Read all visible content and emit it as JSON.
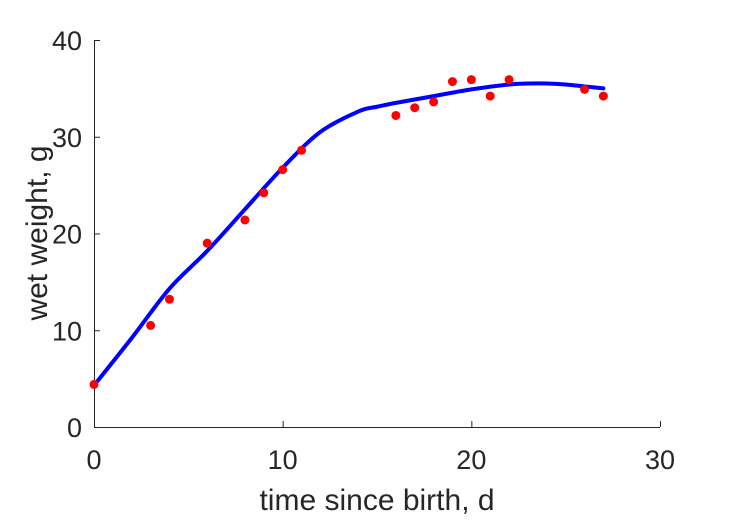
{
  "chart_data": {
    "type": "scatter",
    "title": "",
    "xlabel": "time since birth, d",
    "ylabel": "wet weight, g",
    "xlim": [
      0,
      30
    ],
    "ylim": [
      0,
      40
    ],
    "xticks": [
      0,
      10,
      20,
      30
    ],
    "yticks": [
      0,
      10,
      20,
      30,
      40
    ],
    "xtick_labels": [
      "0",
      "10",
      "20",
      "30"
    ],
    "ytick_labels": [
      "0",
      "10",
      "20",
      "30",
      "40"
    ],
    "grid": false,
    "legend": "none",
    "series": [
      {
        "kind": "scatter",
        "color": "#ff0000",
        "marker": "circle",
        "x": [
          0,
          3,
          4,
          6,
          8,
          9,
          10,
          11,
          16,
          17,
          18,
          19,
          20,
          21,
          22,
          26,
          27
        ],
        "y": [
          4.4,
          10.5,
          13.2,
          19.0,
          21.4,
          24.2,
          26.6,
          28.6,
          32.2,
          33.0,
          33.6,
          35.7,
          35.9,
          34.2,
          35.9,
          34.9,
          34.2
        ]
      },
      {
        "kind": "line",
        "color": "#0000ff",
        "x": [
          0,
          2,
          4,
          6,
          8,
          10,
          12,
          14,
          15,
          16,
          18,
          20,
          22,
          23,
          24,
          25,
          26,
          27
        ],
        "y": [
          4.3,
          9.2,
          14.3,
          18.2,
          22.5,
          26.8,
          30.5,
          32.6,
          33.1,
          33.5,
          34.2,
          34.9,
          35.4,
          35.5,
          35.5,
          35.4,
          35.2,
          35.0
        ]
      }
    ]
  }
}
